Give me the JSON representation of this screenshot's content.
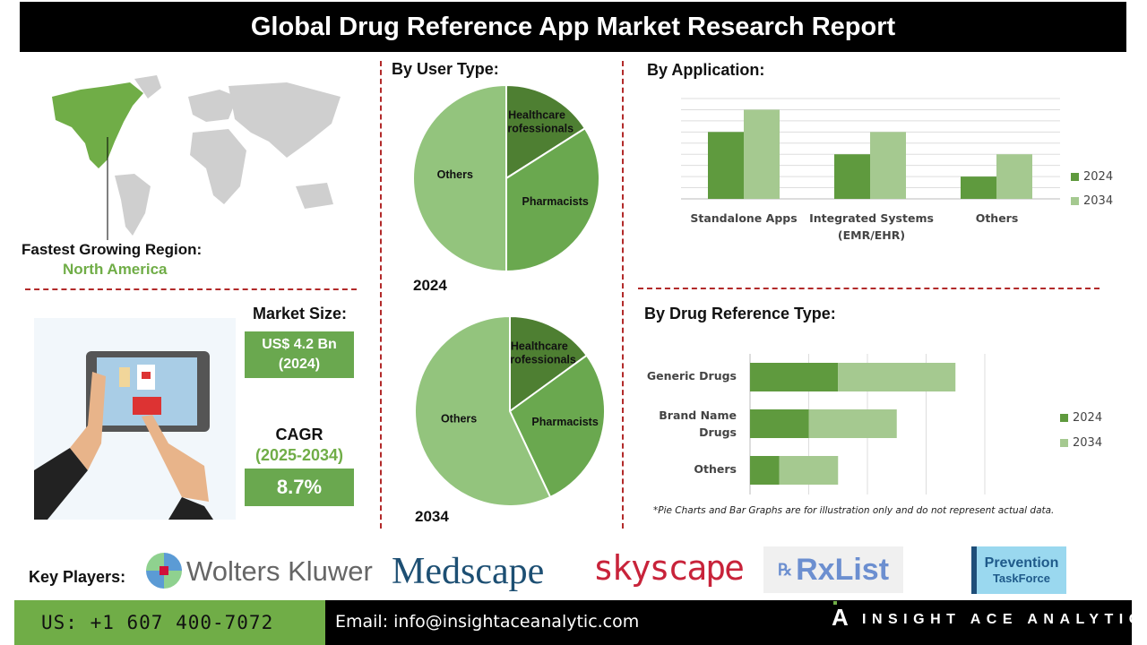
{
  "title": "Global Drug Reference App Market Research Report",
  "region": {
    "label": "Fastest Growing Region:",
    "value": "North America"
  },
  "market_size": {
    "label": "Market Size:",
    "value": "US$ 4.2 Bn",
    "year": "(2024)"
  },
  "cagr": {
    "label": "CAGR",
    "period": "(2025-2034)",
    "value": "8.7%"
  },
  "colors": {
    "dark_green": "#5f9a3e",
    "light_green": "#a5c990",
    "pie_light": "#93c47d",
    "pie_mid": "#6aa84f",
    "pie_dark": "#4e7f32",
    "accent": "#70ad47",
    "divider": "#b22a2a"
  },
  "chart_data": [
    {
      "type": "pie",
      "title": "By User Type:",
      "year_label": "2024",
      "categories": [
        "Healthcare Professionals",
        "Pharmacists",
        "Others"
      ],
      "values": [
        16,
        34,
        50
      ]
    },
    {
      "type": "pie",
      "year_label": "2034",
      "categories": [
        "Healthcare Professionals",
        "Pharmacists",
        "Others"
      ],
      "values": [
        15,
        28,
        57
      ]
    },
    {
      "type": "bar",
      "title": "By  Application:",
      "categories": [
        "Standalone Apps",
        "Integrated Systems (EMR/EHR)",
        "Others"
      ],
      "series": [
        {
          "name": "2024",
          "values": [
            6,
            4,
            2
          ]
        },
        {
          "name": "2034",
          "values": [
            8,
            6,
            4
          ]
        }
      ],
      "ylim": [
        0,
        9
      ],
      "grid": true,
      "legend": "right"
    },
    {
      "type": "bar",
      "orientation": "horizontal",
      "stacked": true,
      "title": "By Drug Reference Type:",
      "categories": [
        "Generic Drugs",
        "Brand Name Drugs",
        "Others"
      ],
      "series": [
        {
          "name": "2024",
          "values": [
            1.5,
            1,
            0.5
          ]
        },
        {
          "name": "2034",
          "values": [
            2,
            1.5,
            1
          ]
        }
      ],
      "xlim": [
        0,
        4
      ],
      "grid": true,
      "legend": "right"
    }
  ],
  "app_label_line1": "Integrated Systems",
  "app_label_line2": "(EMR/EHR)",
  "brand_label_line1": "Brand Name",
  "brand_label_line2": "Drugs",
  "footnote": "*Pie Charts and Bar Graphs are for illustration only and do not represent actual data.",
  "key_players": {
    "label": "Key Players:",
    "logos": [
      "Wolters Kluwer",
      "Medscape",
      "skyscape",
      "RxList",
      "Prevention",
      "TaskForce"
    ]
  },
  "footer": {
    "phone": "US: +1 607 400-7072",
    "email": "Email: info@insightaceanalytic.com",
    "brand": "INSIGHT ACE ANALYTIC"
  }
}
